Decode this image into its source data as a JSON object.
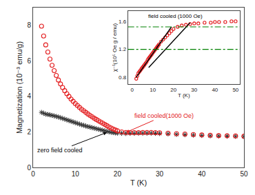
{
  "chart_data": [
    {
      "type": "scatter",
      "xlabel": "T (K)",
      "ylabel": "Magnetization (10⁻³ emu/g)",
      "xlim": [
        0,
        50
      ],
      "ylim": [
        0,
        9.0
      ],
      "xticks": [
        0,
        10,
        20,
        30,
        40,
        50
      ],
      "yticks": [
        0,
        2,
        4,
        6,
        8
      ],
      "grid": false,
      "series": [
        {
          "type": "scatter",
          "color": "#333333",
          "marker": "asterisk",
          "x": [
            2,
            2.5,
            3,
            3.5,
            4,
            4.5,
            5,
            5.5,
            6,
            6.5,
            7,
            7.5,
            8,
            8.5,
            9,
            9.5,
            10,
            10.5,
            11,
            11.5,
            12,
            12.5,
            13,
            13.5,
            14,
            14.5,
            15,
            15.5,
            16,
            16.5,
            17,
            17.5,
            18,
            18.5,
            19,
            19.5,
            20,
            21,
            22,
            23,
            24,
            25,
            26,
            27,
            28,
            29,
            30,
            32,
            34,
            36,
            38,
            40,
            42,
            44,
            46,
            48,
            50
          ],
          "values": [
            3.1,
            3.05,
            3.0,
            2.98,
            2.96,
            2.93,
            2.9,
            2.87,
            2.84,
            2.8,
            2.76,
            2.72,
            2.68,
            2.64,
            2.6,
            2.56,
            2.52,
            2.48,
            2.44,
            2.4,
            2.37,
            2.33,
            2.3,
            2.27,
            2.24,
            2.21,
            2.18,
            2.15,
            2.12,
            2.09,
            2.06,
            2.03,
            2.0,
            1.98,
            1.96,
            1.94,
            1.93,
            1.92,
            1.91,
            1.92,
            1.92,
            1.93,
            1.93,
            1.93,
            1.93,
            1.92,
            1.91,
            1.89,
            1.86,
            1.84,
            1.82,
            1.8,
            1.78,
            1.77,
            1.76,
            1.75,
            1.74
          ]
        },
        {
          "type": "scatter",
          "color": "#e31a1c",
          "marker": "circle-open",
          "x": [
            2,
            2.5,
            3,
            3.5,
            4,
            4.5,
            5,
            5.5,
            6,
            6.5,
            7,
            7.5,
            8,
            8.5,
            9,
            9.5,
            10,
            10.5,
            11,
            11.5,
            12,
            12.5,
            13,
            13.5,
            14,
            14.5,
            15,
            15.5,
            16,
            16.5,
            17,
            17.5,
            18,
            18.5,
            19,
            19.5,
            20,
            21,
            22,
            23,
            24,
            25,
            26,
            27,
            28,
            29,
            30,
            32,
            34,
            36,
            38,
            40,
            42,
            44,
            46,
            48,
            50
          ],
          "values": [
            7.95,
            7.4,
            6.9,
            6.5,
            6.1,
            5.75,
            5.45,
            5.18,
            4.92,
            4.7,
            4.5,
            4.32,
            4.15,
            4.0,
            3.85,
            3.72,
            3.6,
            3.49,
            3.38,
            3.28,
            3.19,
            3.1,
            3.01,
            2.93,
            2.85,
            2.77,
            2.7,
            2.63,
            2.56,
            2.49,
            2.42,
            2.35,
            2.28,
            2.22,
            2.16,
            2.11,
            2.06,
            2.0,
            1.97,
            1.96,
            1.96,
            1.96,
            1.97,
            1.97,
            1.97,
            1.96,
            1.95,
            1.93,
            1.9,
            1.88,
            1.85,
            1.83,
            1.81,
            1.79,
            1.78,
            1.77,
            1.76
          ]
        }
      ],
      "annotations": [
        {
          "text": "field cooled(1000 Oe)",
          "x": 22,
          "y": 1.97,
          "color": "#e31a1c"
        },
        {
          "text": "zero field cooled",
          "x": 17.5,
          "y": 1.97,
          "color": "black"
        }
      ]
    },
    {
      "type": "scatter",
      "xlabel": "T (K)",
      "ylabel": "χ⁻¹(10⁵ Oe g / emu)",
      "xlim": [
        -2,
        52
      ],
      "ylim": [
        0.7,
        1.75
      ],
      "xticks": [
        0,
        10,
        20,
        30,
        40,
        50
      ],
      "yticks": [
        0.8,
        1.2,
        1.6
      ],
      "grid": false,
      "series": [
        {
          "type": "scatter",
          "color": "#e31a1c",
          "marker": "circle-open",
          "x": [
            2,
            2.5,
            3,
            3.5,
            4,
            4.5,
            5,
            5.5,
            6,
            6.5,
            7,
            7.5,
            8,
            8.5,
            9,
            9.5,
            10,
            10.5,
            11,
            11.5,
            12,
            12.5,
            13,
            14,
            15,
            16,
            17,
            18,
            19,
            20,
            22,
            24,
            26,
            28,
            30,
            32,
            35,
            38,
            40,
            42,
            45,
            48,
            50
          ],
          "values": [
            0.78,
            0.82,
            0.86,
            0.88,
            0.9,
            0.92,
            0.94,
            0.96,
            0.98,
            1.0,
            1.02,
            1.05,
            1.07,
            1.09,
            1.11,
            1.13,
            1.15,
            1.17,
            1.19,
            1.21,
            1.23,
            1.25,
            1.27,
            1.31,
            1.34,
            1.37,
            1.4,
            1.43,
            1.46,
            1.49,
            1.52,
            1.54,
            1.55,
            1.56,
            1.57,
            1.57,
            1.58,
            1.58,
            1.59,
            1.59,
            1.59,
            1.6,
            1.6
          ]
        },
        {
          "type": "line",
          "color": "black",
          "line_style": "solid",
          "x": [
            8,
            28
          ],
          "values": [
            0.94,
            1.58
          ]
        },
        {
          "type": "line",
          "color": "black",
          "line_style": "solid",
          "x": [
            2,
            19
          ],
          "values": [
            0.8,
            1.52
          ]
        },
        {
          "type": "hline",
          "color": "green",
          "line_style": "dashdot",
          "values": [
            1.52
          ]
        },
        {
          "type": "hline",
          "color": "green",
          "line_style": "dashdot",
          "values": [
            1.2
          ]
        }
      ],
      "annotations": [
        {
          "text": "field cooled (1000 Oe)",
          "color": "black"
        }
      ]
    }
  ]
}
